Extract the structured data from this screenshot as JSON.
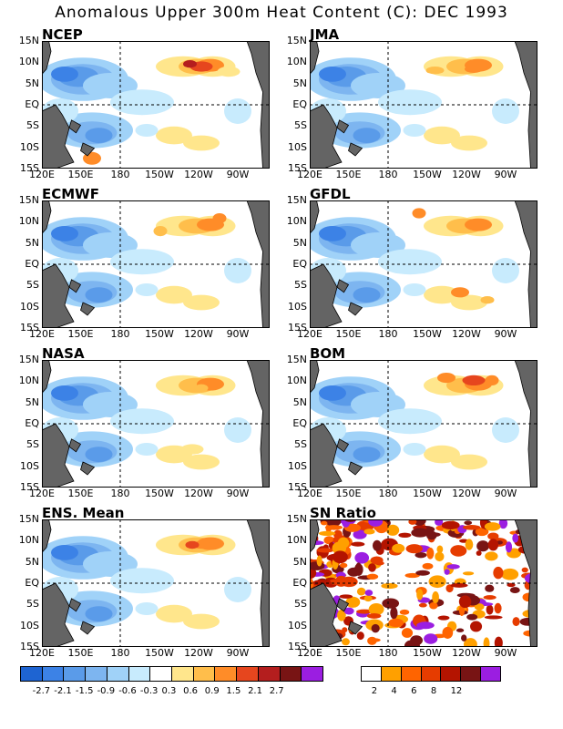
{
  "title": "Anomalous Upper 300m Heat Content (C): DEC 1993",
  "axes": {
    "y_ticks": [
      "15N",
      "10N",
      "5N",
      "EQ",
      "5S",
      "10S",
      "15S"
    ],
    "x_ticks": [
      "120E",
      "150E",
      "180",
      "150W",
      "120W",
      "90W"
    ]
  },
  "chart_data": [
    {
      "type": "heatmap",
      "title": "NCEP",
      "units": "C",
      "xlim": [
        "120E",
        "70W"
      ],
      "ylim": [
        "15S",
        "15N"
      ],
      "pattern": {
        "west_anomaly": "negative",
        "east_north_anomaly": "positive",
        "max": 2.7,
        "min": -2.1
      }
    },
    {
      "type": "heatmap",
      "title": "JMA",
      "units": "C",
      "xlim": [
        "120E",
        "70W"
      ],
      "ylim": [
        "15S",
        "15N"
      ],
      "pattern": {
        "west_anomaly": "negative",
        "east_north_anomaly": "positive"
      }
    },
    {
      "type": "heatmap",
      "title": "ECMWF",
      "units": "C",
      "xlim": [
        "120E",
        "70W"
      ],
      "ylim": [
        "15S",
        "15N"
      ],
      "pattern": {
        "west_anomaly": "negative",
        "east_north_anomaly": "positive"
      }
    },
    {
      "type": "heatmap",
      "title": "GFDL",
      "units": "C",
      "xlim": [
        "120E",
        "70W"
      ],
      "ylim": [
        "15S",
        "15N"
      ],
      "pattern": {
        "west_anomaly": "negative",
        "east_north_anomaly": "positive"
      }
    },
    {
      "type": "heatmap",
      "title": "NASA",
      "units": "C",
      "xlim": [
        "120E",
        "70W"
      ],
      "ylim": [
        "15S",
        "15N"
      ],
      "pattern": {
        "west_anomaly": "negative",
        "east_north_anomaly": "positive"
      }
    },
    {
      "type": "heatmap",
      "title": "BOM",
      "units": "C",
      "xlim": [
        "120E",
        "70W"
      ],
      "ylim": [
        "15S",
        "15N"
      ],
      "pattern": {
        "west_anomaly": "negative",
        "east_north_anomaly": "positive"
      }
    },
    {
      "type": "heatmap",
      "title": "ENS. Mean",
      "units": "C",
      "xlim": [
        "120E",
        "70W"
      ],
      "ylim": [
        "15S",
        "15N"
      ],
      "pattern": {
        "west_anomaly": "negative",
        "east_north_anomaly": "positive"
      }
    },
    {
      "type": "heatmap",
      "title": "SN Ratio",
      "units": "ratio",
      "xlim": [
        "120E",
        "70W"
      ],
      "ylim": [
        "15S",
        "15N"
      ]
    }
  ],
  "colorbars": {
    "anomaly": {
      "labels": [
        "-2.7",
        "-2.1",
        "-1.5",
        "-0.9",
        "-0.6",
        "-0.3",
        "0.3",
        "0.6",
        "0.9",
        "1.5",
        "2.1",
        "2.7"
      ],
      "colors": [
        "#1e64d2",
        "#3c82e6",
        "#5a9be9",
        "#7db5f0",
        "#a0d2f8",
        "#c8ebfd",
        "#ffffff",
        "#ffe68c",
        "#ffbe4b",
        "#ff8c28",
        "#e6461e",
        "#b41e1e",
        "#781414",
        "#9b1ee1"
      ]
    },
    "sn_ratio": {
      "labels": [
        "2",
        "4",
        "6",
        "8",
        "12"
      ],
      "colors": [
        "#ffffff",
        "#ffa000",
        "#ff6400",
        "#e63c00",
        "#b41400",
        "#781414",
        "#9b1ee1"
      ]
    }
  },
  "colors": {
    "land": "#646464",
    "dash": "#000000"
  }
}
